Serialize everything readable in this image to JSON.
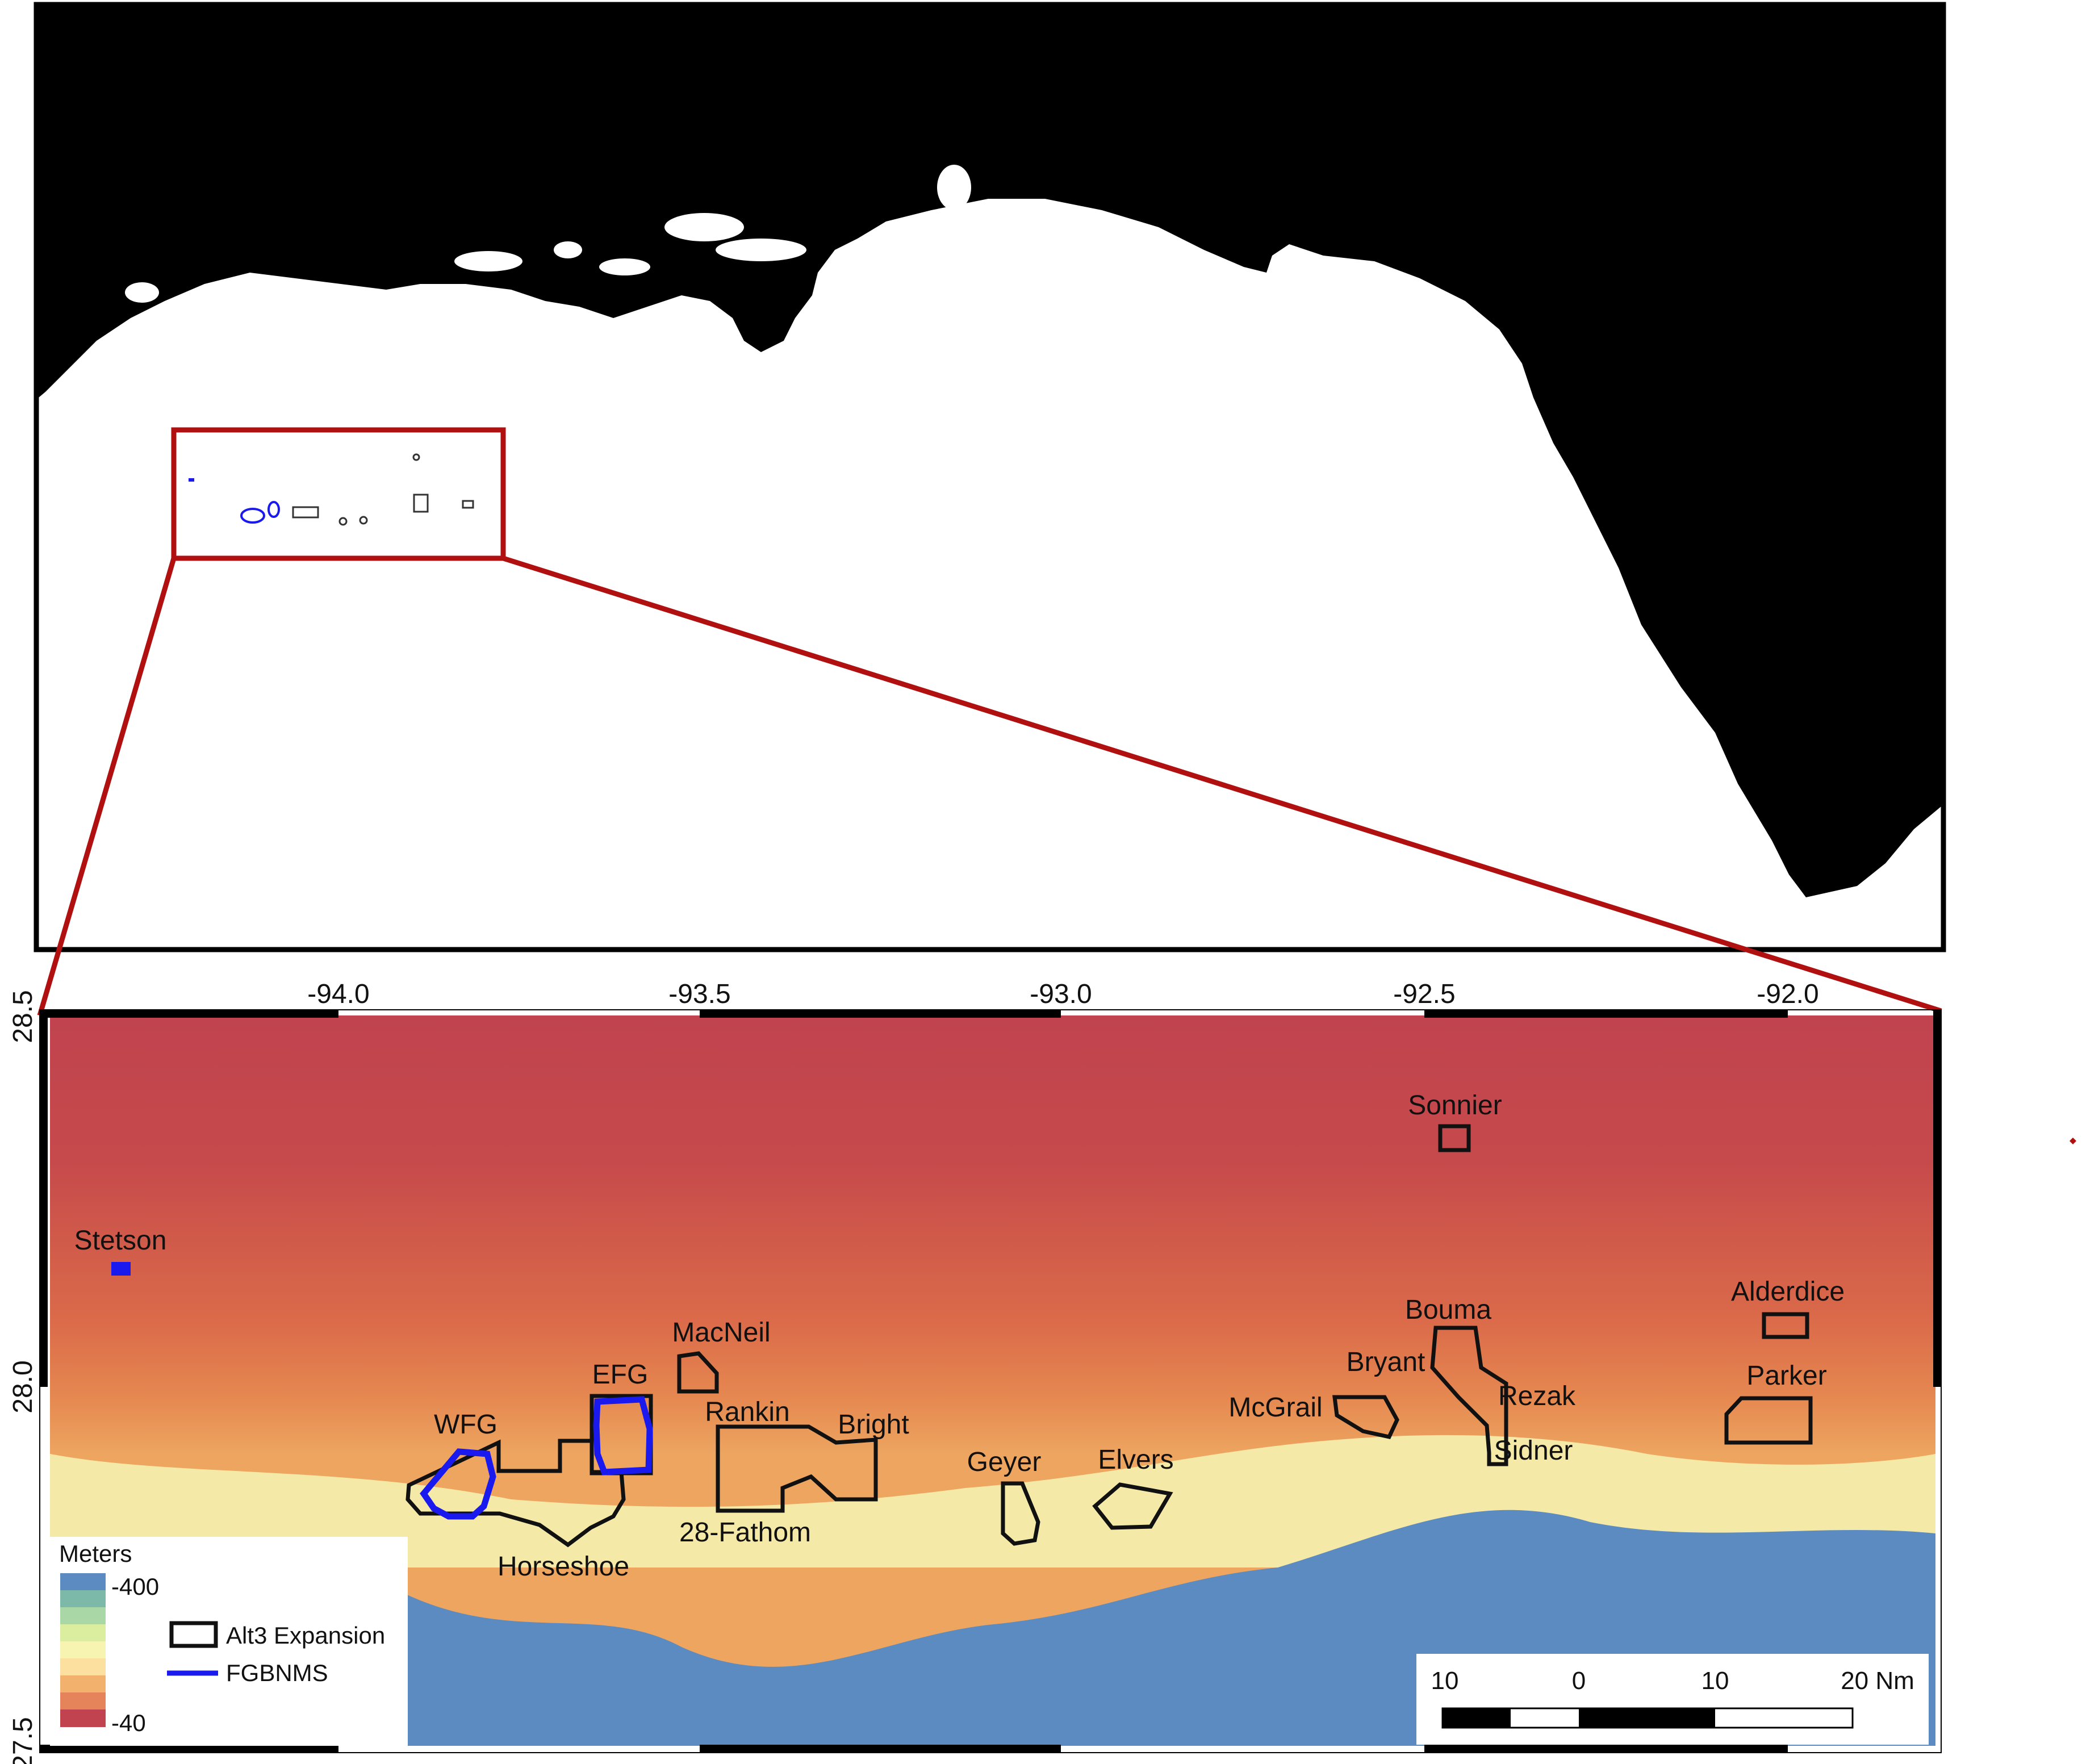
{
  "overview_map": {
    "description_visible": false,
    "inset_box_color": "#b01010"
  },
  "detail_map": {
    "top_axis_labels": [
      "-94.0",
      "-93.5",
      "-93.0",
      "-92.5",
      "-92.0"
    ],
    "left_axis_labels": [
      "28.5",
      "28.0",
      "27.5"
    ],
    "site_labels": {
      "sonnier": "Sonnier",
      "stetson": "Stetson",
      "macneil": "MacNeil",
      "efg": "EFG",
      "wfg": "WFG",
      "rankin": "Rankin",
      "bright": "Bright",
      "horseshoe": "Horseshoe",
      "twentyeight_fathom": "28-Fathom",
      "geyer": "Geyer",
      "elvers": "Elvers",
      "mcgrail": "McGrail",
      "bryant": "Bryant",
      "bouma": "Bouma",
      "rezak": "Rezak",
      "sidner": "Sidner",
      "alderdice": "Alderdice",
      "parker": "Parker"
    },
    "colors": {
      "shallow": "#c0434f",
      "deep": "#5b8bc0",
      "alt3_outline": "#111111",
      "fgbnms_outline": "#1a1aee"
    }
  },
  "legend": {
    "title": "Meters",
    "max_label": "-400",
    "min_label": "-40",
    "ramp": [
      "#5b8bc0",
      "#7cb9a8",
      "#a9d8a6",
      "#dbeea0",
      "#f7f3b0",
      "#fbe0a0",
      "#f2b26e",
      "#e5845a",
      "#c0434f"
    ],
    "alt3_label": "Alt3 Expansion",
    "fgbnms_label": "FGBNMS"
  },
  "scale_bar": {
    "labels": [
      "10",
      "0",
      "10",
      "20 Nm"
    ]
  }
}
